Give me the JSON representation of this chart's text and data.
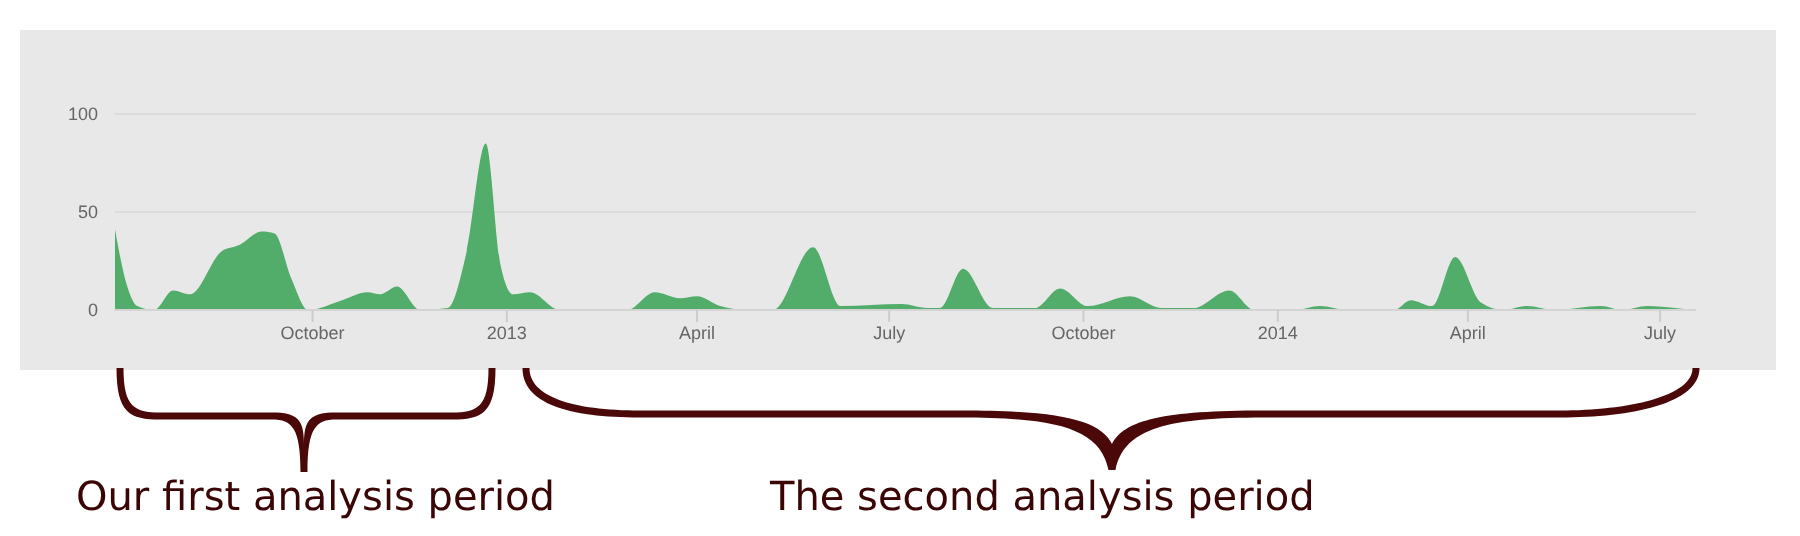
{
  "chart_data": {
    "type": "area",
    "x": [
      "2012-06-29",
      "2012-07-05",
      "2012-07-10",
      "2012-07-18",
      "2012-07-27",
      "2012-08-04",
      "2012-08-19",
      "2012-08-27",
      "2012-09-07",
      "2012-09-13",
      "2012-09-21",
      "2012-09-29",
      "2012-10-15",
      "2012-10-27",
      "2012-11-02",
      "2012-11-10",
      "2012-11-21",
      "2012-12-04",
      "2012-12-13",
      "2012-12-22",
      "2012-12-29",
      "2013-01-04",
      "2013-01-12",
      "2013-01-26",
      "2013-02-27",
      "2013-03-12",
      "2013-03-24",
      "2013-04-01",
      "2013-04-12",
      "2013-04-25",
      "2013-05-07",
      "2013-05-26",
      "2013-06-08",
      "2013-07-07",
      "2013-07-19",
      "2013-07-25",
      "2013-08-05",
      "2013-08-19",
      "2013-09-08",
      "2013-09-20",
      "2013-10-03",
      "2013-10-23",
      "2013-11-07",
      "2013-11-22",
      "2013-12-09",
      "2013-12-21",
      "2014-01-09",
      "2014-01-21",
      "2014-02-03",
      "2014-02-25",
      "2014-03-05",
      "2014-03-15",
      "2014-03-26",
      "2014-04-07",
      "2014-04-18",
      "2014-04-29",
      "2014-05-12",
      "2014-06-03",
      "2014-06-13",
      "2014-06-25",
      "2014-07-08",
      "2014-07-17"
    ],
    "series": [
      {
        "color": "#52ad6b",
        "values": [
          44,
          13,
          2,
          0,
          10,
          8,
          30,
          33,
          40,
          39,
          16,
          0,
          5,
          9,
          8,
          12,
          0,
          1,
          30,
          85,
          23,
          8,
          9,
          0,
          0,
          9,
          6,
          7,
          2,
          0,
          0,
          32,
          2,
          3,
          1,
          1,
          21,
          1,
          1,
          11,
          2,
          7,
          1,
          1,
          10,
          0,
          0,
          2,
          0,
          0,
          5,
          2,
          27,
          4,
          0,
          2,
          0,
          2,
          0,
          2,
          1,
          0
        ]
      }
    ],
    "xlim": [
      "2012-06-29",
      "2014-07-18"
    ],
    "xticks": [
      {
        "value": "2012-10-01",
        "label": "October"
      },
      {
        "value": "2013-01-01",
        "label": "2013"
      },
      {
        "value": "2013-04-01",
        "label": "April"
      },
      {
        "value": "2013-07-01",
        "label": "July"
      },
      {
        "value": "2013-10-01",
        "label": "October"
      },
      {
        "value": "2014-01-01",
        "label": "2014"
      },
      {
        "value": "2014-04-01",
        "label": "April"
      },
      {
        "value": "2014-07-01",
        "label": "July"
      }
    ],
    "ylim": [
      0,
      100
    ],
    "yticks": [
      0,
      50,
      100
    ],
    "grid": "y",
    "annotations": [
      "Our first analysis period",
      "The second analysis period"
    ]
  }
}
